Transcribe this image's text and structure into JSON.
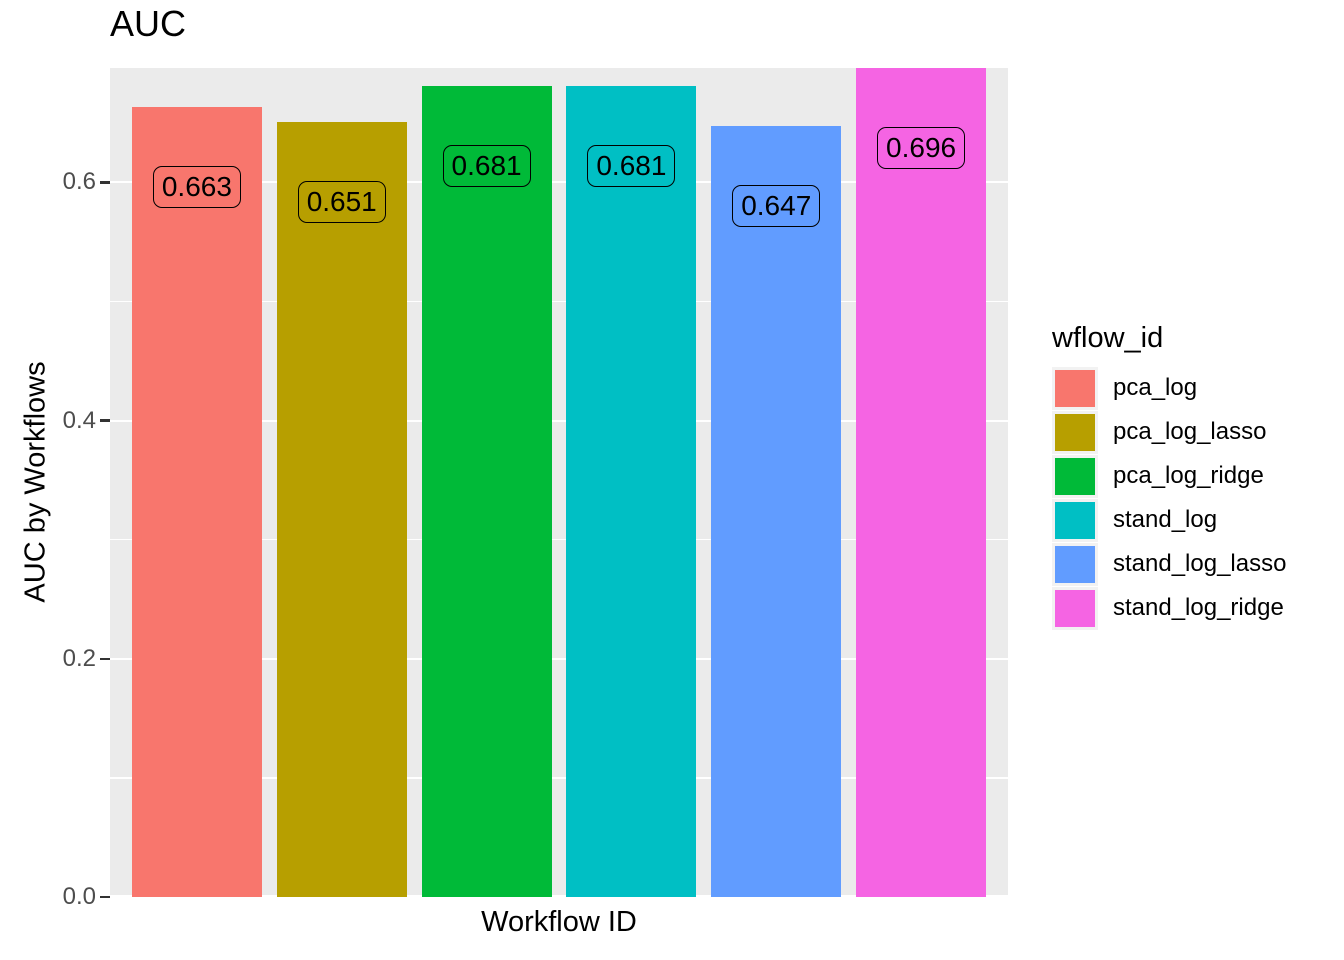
{
  "chart_data": {
    "type": "bar",
    "title": "AUC",
    "xlabel": "Workflow ID",
    "ylabel": "AUC by Workflows",
    "legend_title": "wflow_id",
    "legend_position": "right",
    "categories": [
      "pca_log",
      "pca_log_lasso",
      "pca_log_ridge",
      "stand_log",
      "stand_log_lasso",
      "stand_log_ridge"
    ],
    "values": [
      0.663,
      0.651,
      0.681,
      0.681,
      0.647,
      0.696
    ],
    "bar_labels": [
      "0.663",
      "0.651",
      "0.681",
      "0.681",
      "0.647",
      "0.696"
    ],
    "colors": [
      "#F8766D",
      "#B79F00",
      "#00BA38",
      "#00BFC4",
      "#619CFF",
      "#F564E3"
    ],
    "ylim": [
      0,
      0.696
    ],
    "y_major_ticks": [
      0.0,
      0.2,
      0.4,
      0.6
    ],
    "y_tick_labels": [
      "0.0",
      "0.2",
      "0.4",
      "0.6"
    ],
    "y_minor_ticks": [
      0.1,
      0.3,
      0.5
    ],
    "grid": true,
    "panel_background": "#EBEBEB",
    "grid_color": "#FFFFFF",
    "tick_label_color": "#4D4D4D",
    "tick_mark_color": "#333333",
    "text_color": "#000000",
    "bar_label_style": "rounded-box-transparent"
  }
}
